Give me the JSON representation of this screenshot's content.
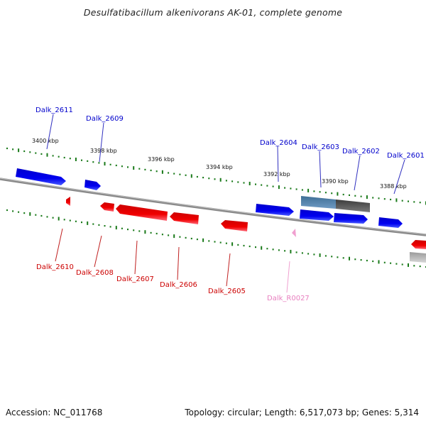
{
  "title": "Desulfatibacillum alkenivorans AK-01, complete genome",
  "footer": {
    "accession": "Accession: NC_011768",
    "summary": "Topology: circular; Length: 6,517,073 bp; Genes: 5,314"
  },
  "ruler_labels": [
    "3400 kbp",
    "3398 kbp",
    "3396 kbp",
    "3394 kbp",
    "3392 kbp",
    "3390 kbp",
    "3388 kbp"
  ],
  "genes_top": [
    {
      "id": "g2611",
      "name": "Dalk_2611",
      "color": "#0000cc"
    },
    {
      "id": "g2609",
      "name": "Dalk_2609",
      "color": "#0000cc"
    },
    {
      "id": "g2604",
      "name": "Dalk_2604",
      "color": "#0000cc"
    },
    {
      "id": "g2603",
      "name": "Dalk_2603",
      "color": "#0000cc"
    },
    {
      "id": "g2602",
      "name": "Dalk_2602",
      "color": "#0000cc"
    },
    {
      "id": "g2601",
      "name": "Dalk_2601",
      "color": "#0000cc"
    }
  ],
  "genes_bottom": [
    {
      "id": "g2610",
      "name": "Dalk_2610",
      "color": "#cc0000"
    },
    {
      "id": "g2608",
      "name": "Dalk_2608",
      "color": "#cc0000"
    },
    {
      "id": "g2607",
      "name": "Dalk_2607",
      "color": "#cc0000"
    },
    {
      "id": "g2606",
      "name": "Dalk_2606",
      "color": "#cc0000"
    },
    {
      "id": "g2605",
      "name": "Dalk_2605",
      "color": "#cc0000"
    },
    {
      "id": "gR0027",
      "name": "Dalk_R0027",
      "color": "#e87fbf"
    }
  ],
  "colors": {
    "forward": "#0000ee",
    "reverse": "#ee0000",
    "rna": "#f0a0d0",
    "tick": "#1a7a1a",
    "backbone": "#777777"
  }
}
